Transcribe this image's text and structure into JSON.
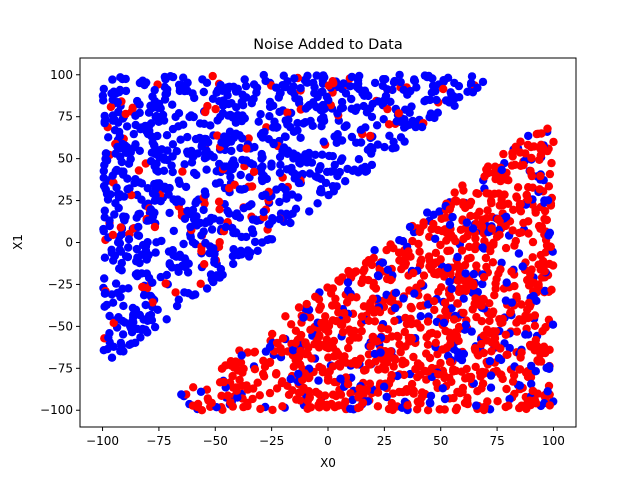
{
  "chart_data": {
    "type": "scatter",
    "title": "Noise Added to Data",
    "xlabel": "X0",
    "ylabel": "X1",
    "xlim": [
      -110,
      110
    ],
    "ylim": [
      -110,
      110
    ],
    "xticks": [
      -100,
      -75,
      -50,
      -25,
      0,
      25,
      50,
      75,
      100
    ],
    "yticks": [
      -100,
      -75,
      -50,
      -25,
      0,
      25,
      50,
      75,
      100
    ],
    "grid": false,
    "colors": {
      "blue": "#0000ff",
      "red": "#ff0000",
      "axes": "#000000"
    },
    "description_points": "Blue points dominantly fill the upper-left triangle (X1 > X0 + 25); red points dominantly fill the lower-right triangle (X1 < X0 - 25); some points are label-flipped noise.",
    "regions": [
      {
        "color": "#0000ff",
        "rule": "X1 >= X0 + 25",
        "majority_share": 0.9
      },
      {
        "color": "#ff0000",
        "rule": "X1 <= X0 - 25",
        "majority_share": 0.8
      }
    ],
    "sample_points": {
      "x": [
        -95,
        -80,
        -60,
        -40,
        -20,
        0,
        20,
        50,
        -90,
        -70,
        -50,
        -30,
        -10,
        10,
        30,
        60,
        75,
        -100,
        -85,
        -65,
        -45,
        -25,
        -5,
        15,
        35,
        55,
        70,
        80,
        95,
        85,
        65,
        45,
        25,
        5,
        -15,
        -35,
        -55,
        -75,
        90,
        100
      ],
      "y": [
        -60,
        -40,
        0,
        30,
        60,
        90,
        95,
        100,
        80,
        70,
        20,
        -10,
        50,
        75,
        80,
        98,
        99,
        40,
        -20,
        10,
        60,
        45,
        85,
        65,
        90,
        92,
        97,
        -100,
        -95,
        -60,
        -30,
        10,
        20,
        -40,
        -70,
        -95,
        -100,
        -98,
        60,
        75
      ],
      "colors": [
        "b",
        "b",
        "b",
        "b",
        "b",
        "b",
        "b",
        "b",
        "b",
        "b",
        "b",
        "b",
        "b",
        "b",
        "b",
        "b",
        "b",
        "b",
        "b",
        "b",
        "b",
        "b",
        "b",
        "b",
        "b",
        "b",
        "b",
        "r",
        "r",
        "r",
        "r",
        "r",
        "r",
        "r",
        "r",
        "r",
        "r",
        "r",
        "r",
        "r"
      ]
    }
  }
}
